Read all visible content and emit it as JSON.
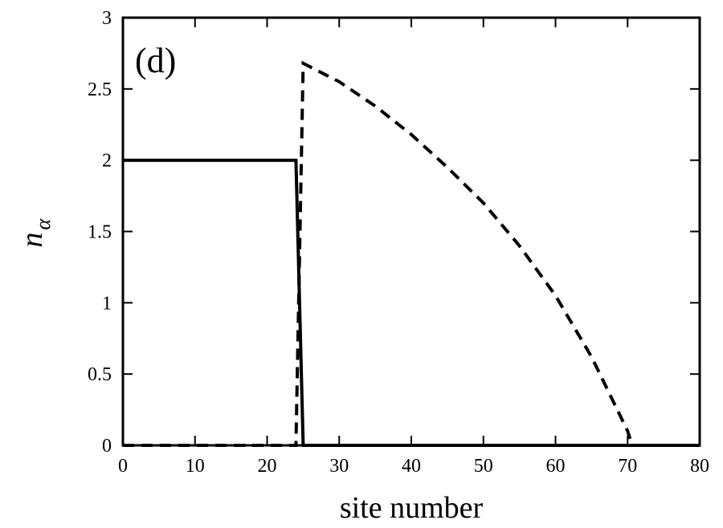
{
  "chart_data": {
    "type": "line",
    "panel_label": "(d)",
    "xlabel": "site number",
    "ylabel": "n",
    "ylabel_subscript": "α",
    "xlim": [
      0,
      80
    ],
    "ylim": [
      0,
      3
    ],
    "xticks": [
      0,
      10,
      20,
      30,
      40,
      50,
      60,
      70,
      80
    ],
    "yticks": [
      0,
      0.5,
      1,
      1.5,
      2,
      2.5,
      3
    ],
    "ytick_labels": [
      "0",
      "0.5",
      "1",
      "1.5",
      "2",
      "2.5",
      "3"
    ],
    "grid": false,
    "legend": "none",
    "series": [
      {
        "style": "solid",
        "color": "#000000",
        "x": [
          0,
          24,
          25,
          80
        ],
        "y": [
          2,
          2,
          0,
          0
        ]
      },
      {
        "style": "dashed",
        "color": "#000000",
        "x": [
          0,
          24,
          25,
          30,
          35,
          40,
          45,
          50,
          55,
          60,
          65,
          70,
          70.5
        ],
        "y": [
          0,
          0,
          2.68,
          2.55,
          2.38,
          2.18,
          1.95,
          1.7,
          1.4,
          1.05,
          0.62,
          0.1,
          0.02
        ]
      }
    ]
  }
}
